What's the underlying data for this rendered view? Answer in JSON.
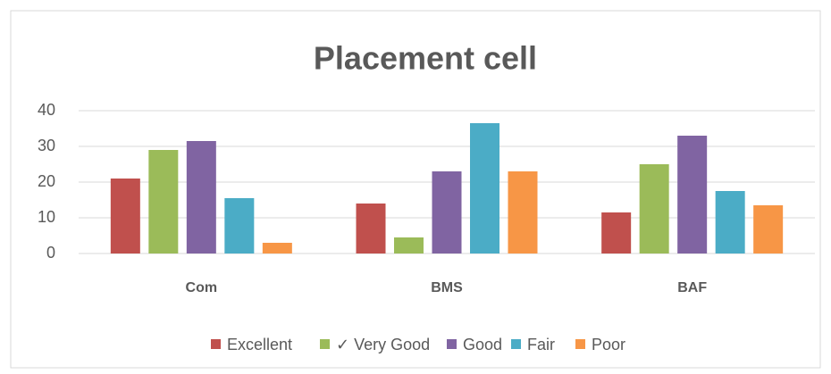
{
  "chart_data": {
    "type": "bar",
    "title": "Placement cell",
    "categories": [
      "Com",
      "BMS",
      "BAF"
    ],
    "series": [
      {
        "name": "Excellent",
        "color": "#c0504d",
        "values": [
          21,
          14,
          11.5
        ]
      },
      {
        "name": "✓ Very Good",
        "color": "#9bbb59",
        "values": [
          29,
          4.5,
          25
        ]
      },
      {
        "name": "Good",
        "color": "#8064a2",
        "values": [
          31.5,
          23,
          33
        ]
      },
      {
        "name": "Fair",
        "color": "#4bacc6",
        "values": [
          15.5,
          36.5,
          17.5
        ]
      },
      {
        "name": "Poor",
        "color": "#f79646",
        "values": [
          3,
          23,
          13.5
        ]
      }
    ],
    "ylim": [
      0,
      40
    ],
    "yticks": [
      0,
      10,
      20,
      30,
      40
    ],
    "grid": true,
    "legend": "bottom"
  }
}
